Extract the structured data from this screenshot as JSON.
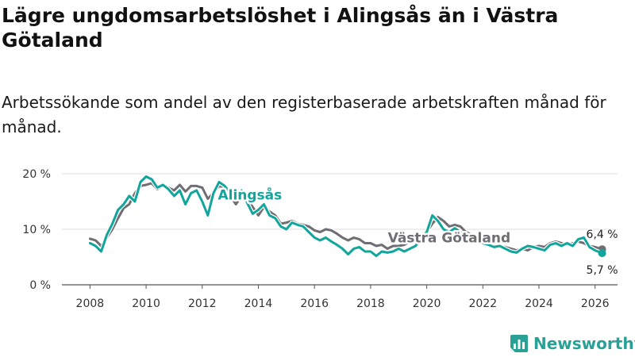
{
  "header": {
    "title": "Lägre ungdomsarbetslöshet i Alingsås än i Västra Götaland",
    "subtitle": "Arbetssökande som andel av den registerbaserade arbetskraften månad för månad."
  },
  "brand": {
    "name": "Newsworthy",
    "color": "#2aa197"
  },
  "chart_data": {
    "type": "line",
    "title": "Lägre ungdomsarbetslöshet i Alingsås än i Västra Götaland",
    "subtitle": "Arbetssökande som andel av den registerbaserade arbetskraften månad för månad.",
    "xlabel": "",
    "ylabel": "",
    "xlim": [
      2007.0,
      2026.8
    ],
    "ylim": [
      0,
      20
    ],
    "x_ticks": [
      2008,
      2010,
      2012,
      2014,
      2016,
      2018,
      2020,
      2022,
      2024,
      2026
    ],
    "x_tick_labels": [
      "2008",
      "2010",
      "2012",
      "2014",
      "2016",
      "2018",
      "2020",
      "2022",
      "2024",
      "2026"
    ],
    "y_ticks": [
      0,
      10,
      20
    ],
    "y_tick_labels": [
      "0 %",
      "10 %",
      "20 %"
    ],
    "grid": "horizontal",
    "series": [
      {
        "name": "Västra Götaland",
        "color": "#6e6e73",
        "x": [
          2008.0,
          2008.2,
          2008.4,
          2008.6,
          2008.8,
          2009.0,
          2009.2,
          2009.4,
          2009.6,
          2009.8,
          2010.0,
          2010.2,
          2010.4,
          2010.6,
          2010.8,
          2011.0,
          2011.2,
          2011.4,
          2011.6,
          2011.8,
          2012.0,
          2012.2,
          2012.4,
          2012.6,
          2012.8,
          2013.0,
          2013.2,
          2013.4,
          2013.6,
          2013.8,
          2014.0,
          2014.2,
          2014.4,
          2014.6,
          2014.8,
          2015.0,
          2015.2,
          2015.4,
          2015.6,
          2015.8,
          2016.0,
          2016.2,
          2016.4,
          2016.6,
          2016.8,
          2017.0,
          2017.2,
          2017.4,
          2017.6,
          2017.8,
          2018.0,
          2018.2,
          2018.4,
          2018.6,
          2018.8,
          2019.0,
          2019.2,
          2019.4,
          2019.6,
          2019.8,
          2020.0,
          2020.2,
          2020.4,
          2020.6,
          2020.8,
          2021.0,
          2021.2,
          2021.4,
          2021.6,
          2021.8,
          2022.0,
          2022.2,
          2022.4,
          2022.6,
          2022.8,
          2023.0,
          2023.2,
          2023.4,
          2023.6,
          2023.8,
          2024.0,
          2024.2,
          2024.4,
          2024.6,
          2024.8,
          2025.0,
          2025.2,
          2025.4,
          2025.6,
          2025.8,
          2026.0,
          2026.25
        ],
        "values": [
          8.3,
          8.0,
          7.0,
          8.5,
          10.0,
          12.0,
          13.8,
          14.5,
          16.5,
          17.8,
          18.0,
          18.3,
          17.2,
          18.0,
          17.5,
          17.0,
          18.0,
          16.8,
          17.8,
          17.8,
          17.5,
          15.5,
          16.5,
          17.8,
          17.5,
          16.0,
          14.5,
          16.0,
          15.5,
          14.0,
          12.5,
          14.0,
          13.2,
          12.5,
          11.0,
          11.2,
          11.5,
          11.0,
          10.8,
          10.5,
          9.8,
          9.5,
          10.0,
          9.8,
          9.2,
          8.5,
          8.0,
          8.5,
          8.2,
          7.5,
          7.5,
          7.0,
          7.2,
          6.5,
          7.0,
          7.0,
          7.2,
          7.8,
          8.5,
          9.0,
          9.5,
          11.0,
          12.2,
          11.5,
          10.5,
          10.8,
          10.5,
          9.5,
          9.0,
          8.2,
          7.5,
          7.2,
          6.8,
          7.0,
          6.8,
          6.5,
          6.2,
          6.5,
          6.2,
          6.8,
          7.0,
          6.8,
          7.5,
          7.8,
          7.5,
          7.2,
          7.5,
          7.8,
          7.5,
          7.0,
          6.8,
          6.4
        ]
      },
      {
        "name": "Alingsås",
        "color": "#11a59c",
        "x": [
          2008.0,
          2008.2,
          2008.4,
          2008.6,
          2008.8,
          2009.0,
          2009.2,
          2009.4,
          2009.6,
          2009.8,
          2010.0,
          2010.2,
          2010.4,
          2010.6,
          2010.8,
          2011.0,
          2011.2,
          2011.4,
          2011.6,
          2011.8,
          2012.0,
          2012.2,
          2012.4,
          2012.6,
          2012.8,
          2013.0,
          2013.2,
          2013.4,
          2013.6,
          2013.8,
          2014.0,
          2014.2,
          2014.4,
          2014.6,
          2014.8,
          2015.0,
          2015.2,
          2015.4,
          2015.6,
          2015.8,
          2016.0,
          2016.2,
          2016.4,
          2016.6,
          2016.8,
          2017.0,
          2017.2,
          2017.4,
          2017.6,
          2017.8,
          2018.0,
          2018.2,
          2018.4,
          2018.6,
          2018.8,
          2019.0,
          2019.2,
          2019.4,
          2019.6,
          2019.8,
          2020.0,
          2020.2,
          2020.4,
          2020.6,
          2020.8,
          2021.0,
          2021.2,
          2021.4,
          2021.6,
          2021.8,
          2022.0,
          2022.2,
          2022.4,
          2022.6,
          2022.8,
          2023.0,
          2023.2,
          2023.4,
          2023.6,
          2023.8,
          2024.0,
          2024.2,
          2024.4,
          2024.6,
          2024.8,
          2025.0,
          2025.2,
          2025.4,
          2025.6,
          2025.8,
          2026.0,
          2026.25
        ],
        "values": [
          7.5,
          7.0,
          6.0,
          9.0,
          11.0,
          13.5,
          14.5,
          16.0,
          15.0,
          18.5,
          19.5,
          19.0,
          17.5,
          18.0,
          17.2,
          16.0,
          17.0,
          14.5,
          16.5,
          17.0,
          15.0,
          12.5,
          16.5,
          18.5,
          17.8,
          16.5,
          15.5,
          17.0,
          14.8,
          12.8,
          13.5,
          14.5,
          12.5,
          12.0,
          10.5,
          10.0,
          11.2,
          10.8,
          10.5,
          9.5,
          8.5,
          8.0,
          8.5,
          7.8,
          7.2,
          6.5,
          5.5,
          6.5,
          6.8,
          6.0,
          6.0,
          5.2,
          6.0,
          5.8,
          6.0,
          6.5,
          6.0,
          6.5,
          7.0,
          8.5,
          9.5,
          12.5,
          11.5,
          10.0,
          9.5,
          10.2,
          9.5,
          8.8,
          8.5,
          7.8,
          7.5,
          7.2,
          6.8,
          7.0,
          6.5,
          6.0,
          5.8,
          6.5,
          7.0,
          6.8,
          6.5,
          6.2,
          7.2,
          7.5,
          7.0,
          7.5,
          7.0,
          8.2,
          8.5,
          6.8,
          6.2,
          5.7
        ]
      }
    ],
    "annotations": [
      {
        "series": "Alingsås",
        "text": "Alingsås",
        "x": 2013.7,
        "y": 16.2
      },
      {
        "series": "Västra Götaland",
        "text": "Västra Götaland",
        "x": 2020.8,
        "y": 8.5
      },
      {
        "series": "Västra Götaland",
        "text": "6,4 %",
        "x": 2026.25,
        "y": 6.4
      },
      {
        "series": "Alingsås",
        "text": "5,7 %",
        "x": 2026.25,
        "y": 5.7
      }
    ]
  }
}
